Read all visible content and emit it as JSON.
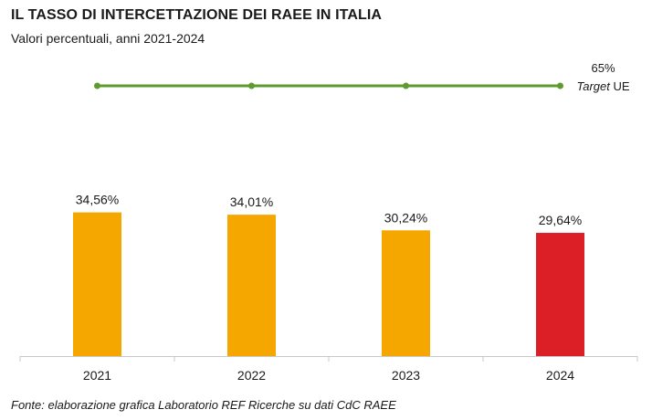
{
  "header": {
    "title": "IL TASSO DI INTERCETTAZIONE DEI RAEE IN ITALIA",
    "subtitle": "Valori percentuali, anni 2021-2024"
  },
  "footer": {
    "source": "Fonte: elaborazione grafica Laboratorio REF Ricerche su dati CdC RAEE"
  },
  "chart_data": {
    "type": "bar",
    "title": "IL TASSO DI INTERCETTAZIONE DEI RAEE IN ITALIA",
    "subtitle": "Valori percentuali, anni 2021-2024",
    "categories": [
      "2021",
      "2022",
      "2023",
      "2024"
    ],
    "values": [
      34.56,
      34.01,
      30.24,
      29.64
    ],
    "value_labels": [
      "34,56%",
      "34,01%",
      "30,24%",
      "29,64%"
    ],
    "bar_colors": [
      "#f5a700",
      "#f5a700",
      "#f5a700",
      "#dc1f26"
    ],
    "ylim": [
      0,
      65
    ],
    "grid": false,
    "target": {
      "value": 65,
      "value_label": "65%",
      "label_italic": "Target",
      "label_rest": " UE",
      "color": "#5e9a2e"
    },
    "axis_color": "#c8c8c8"
  }
}
